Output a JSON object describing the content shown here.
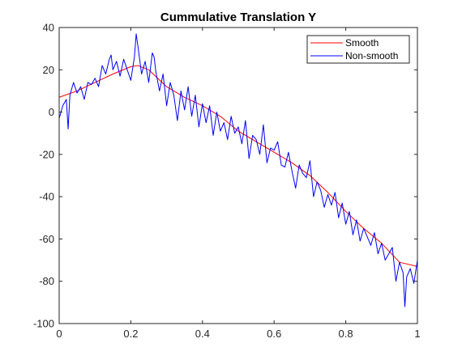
{
  "chart_data": {
    "type": "line",
    "title": "Cummulative Translation Y",
    "xlabel": "",
    "ylabel": "",
    "xlim": [
      0,
      1
    ],
    "ylim": [
      -100,
      40
    ],
    "x_ticks": [
      0,
      0.2,
      0.4,
      0.6,
      0.8,
      1
    ],
    "x_tick_labels": [
      "0",
      "0.2",
      "0.4",
      "0.6",
      "0.8",
      "1"
    ],
    "y_ticks": [
      -100,
      -80,
      -60,
      -40,
      -20,
      0,
      20,
      40
    ],
    "y_tick_labels": [
      "-100",
      "-80",
      "-60",
      "-40",
      "-20",
      "0",
      "20",
      "40"
    ],
    "grid": false,
    "legend_position": "top-right",
    "series": [
      {
        "name": "Smooth",
        "color": "#ff0000",
        "x": [
          0,
          0.05,
          0.1,
          0.15,
          0.2,
          0.22,
          0.25,
          0.3,
          0.35,
          0.4,
          0.45,
          0.5,
          0.55,
          0.6,
          0.65,
          0.7,
          0.75,
          0.8,
          0.85,
          0.9,
          0.95,
          1.0
        ],
        "y": [
          7,
          10,
          14,
          18,
          21.5,
          22,
          20,
          12,
          7,
          3,
          -2,
          -9,
          -14,
          -19,
          -24,
          -30,
          -38,
          -47,
          -55,
          -62,
          -71,
          -73
        ]
      },
      {
        "name": "Non-smooth",
        "color": "#0000ff",
        "x": [
          0,
          0.01,
          0.02,
          0.025,
          0.03,
          0.04,
          0.05,
          0.06,
          0.07,
          0.08,
          0.09,
          0.1,
          0.11,
          0.12,
          0.13,
          0.14,
          0.145,
          0.15,
          0.16,
          0.17,
          0.18,
          0.19,
          0.2,
          0.21,
          0.215,
          0.22,
          0.23,
          0.24,
          0.25,
          0.26,
          0.265,
          0.27,
          0.28,
          0.29,
          0.3,
          0.31,
          0.32,
          0.33,
          0.34,
          0.35,
          0.36,
          0.37,
          0.38,
          0.39,
          0.4,
          0.41,
          0.42,
          0.43,
          0.44,
          0.45,
          0.46,
          0.47,
          0.48,
          0.49,
          0.5,
          0.51,
          0.52,
          0.53,
          0.54,
          0.55,
          0.56,
          0.57,
          0.58,
          0.59,
          0.6,
          0.61,
          0.62,
          0.63,
          0.64,
          0.65,
          0.66,
          0.67,
          0.68,
          0.69,
          0.7,
          0.71,
          0.72,
          0.73,
          0.74,
          0.75,
          0.76,
          0.77,
          0.78,
          0.79,
          0.8,
          0.81,
          0.82,
          0.83,
          0.84,
          0.85,
          0.86,
          0.87,
          0.88,
          0.89,
          0.9,
          0.91,
          0.92,
          0.93,
          0.94,
          0.95,
          0.96,
          0.965,
          0.97,
          0.98,
          0.99,
          1.0
        ],
        "y": [
          -3,
          3,
          6,
          -8,
          8,
          14,
          9,
          12,
          6,
          14,
          13,
          16,
          12,
          22,
          18,
          25,
          27,
          20,
          24,
          17,
          25,
          20,
          15,
          26,
          37,
          31,
          18,
          24,
          14,
          28,
          26,
          19,
          10,
          18,
          3,
          14,
          8,
          -4,
          10,
          1,
          12,
          -2,
          8,
          -7,
          4,
          -5,
          3,
          -11,
          0,
          -9,
          -5,
          -13,
          -2,
          -10,
          -7,
          -15,
          -4,
          -22,
          -11,
          -13,
          -20,
          -6,
          -24,
          -17,
          -18,
          -14,
          -25,
          -26,
          -19,
          -28,
          -36,
          -25,
          -29,
          -31,
          -23,
          -40,
          -33,
          -37,
          -45,
          -39,
          -44,
          -38,
          -50,
          -43,
          -53,
          -47,
          -58,
          -51,
          -61,
          -55,
          -59,
          -63,
          -57,
          -67,
          -62,
          -70,
          -67,
          -64,
          -80,
          -71,
          -76,
          -92,
          -78,
          -74,
          -81,
          -70
        ]
      }
    ]
  }
}
